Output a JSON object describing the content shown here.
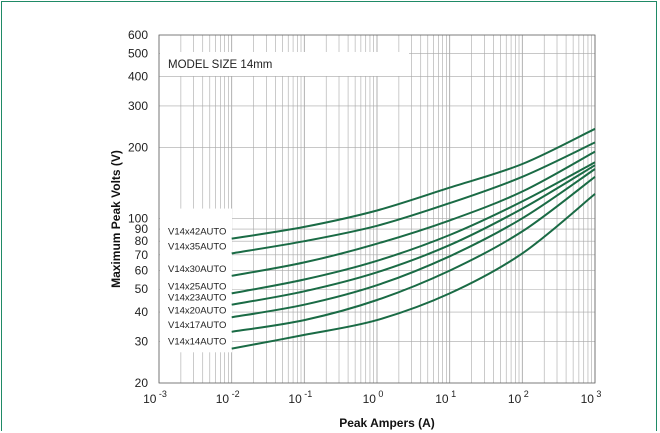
{
  "chart_data": {
    "type": "line",
    "title": "MODEL SIZE 14mm",
    "xlabel": "Peak Ampers (A)",
    "ylabel": "Maximum Peak Volts (V)",
    "x_scale": "log",
    "y_scale": "log",
    "xlim": [
      0.001,
      1000
    ],
    "ylim": [
      20,
      600
    ],
    "grid": true,
    "line_color": "#1a6b45",
    "grid_color": "#a8a8a8",
    "frame_color": "#1f8a66",
    "x_tick_labels": [
      {
        "base": "10",
        "exp": "-3"
      },
      {
        "base": "10",
        "exp": "-2"
      },
      {
        "base": "10",
        "exp": "-1"
      },
      {
        "base": "10",
        "exp": "0"
      },
      {
        "base": "10",
        "exp": "1"
      },
      {
        "base": "10",
        "exp": "2"
      },
      {
        "base": "10",
        "exp": "3"
      }
    ],
    "y_ticks": [
      20,
      30,
      40,
      50,
      60,
      70,
      80,
      90,
      100,
      200,
      300,
      400,
      500,
      600
    ],
    "y_tick_labels": [
      "20",
      "30",
      "40",
      "50",
      "60",
      "70",
      "80",
      "90",
      "100",
      "200",
      "300",
      "400",
      "500",
      "600"
    ],
    "x": [
      0.01,
      0.1,
      1,
      10,
      100,
      1000
    ],
    "series": [
      {
        "name": "V14x42AUTO",
        "values": [
          82,
          92,
          108,
          135,
          170,
          240
        ]
      },
      {
        "name": "V14x35AUTO",
        "values": [
          71,
          80,
          93,
          116,
          150,
          210
        ]
      },
      {
        "name": "V14x30AUTO",
        "values": [
          57,
          65,
          78,
          98,
          130,
          192
        ]
      },
      {
        "name": "V14x25AUTO",
        "values": [
          48,
          55,
          66,
          85,
          118,
          173
        ]
      },
      {
        "name": "V14x23AUTO",
        "values": [
          43,
          49,
          59,
          77,
          110,
          168
        ]
      },
      {
        "name": "V14x20AUTO",
        "values": [
          38,
          43,
          52,
          69,
          100,
          162
        ]
      },
      {
        "name": "V14x17AUTO",
        "values": [
          33,
          37,
          45,
          60,
          88,
          150
        ]
      },
      {
        "name": "V14x14AUTO",
        "values": [
          28,
          32,
          37,
          48,
          71,
          127
        ]
      }
    ]
  }
}
